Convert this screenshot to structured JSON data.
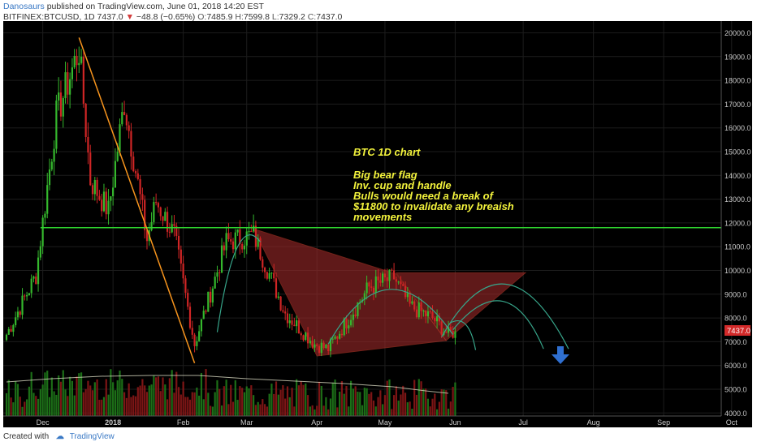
{
  "header": {
    "author": "Danosaurs",
    "published_text": "published on TradingView.com, June 01, 2018 14:20 EST",
    "symbol": "BITFINEX:BTCUSD, 1D",
    "last": "7437.0",
    "arrow": "▼",
    "change": "−48.8 (−0.65%)",
    "o_label": "O:",
    "o_value": "7485.9",
    "h_label": "H:",
    "h_value": "7599.8",
    "l_label": "L:",
    "l_value": "7329.2",
    "c_label": "C:",
    "c_value": "7437.0"
  },
  "annotation": {
    "title": "BTC 1D chart",
    "lines": [
      "Big bear flag",
      "Inv. cup and handle",
      "Bulls would need a break of",
      "$11800 to invalidate any breaish",
      "movements"
    ]
  },
  "price_tag": "7437.0",
  "footer": {
    "created_with": "Created with",
    "brand": "TradingView"
  },
  "colors": {
    "background": "#000000",
    "up": "#35b82d",
    "down": "#cf2525",
    "trendline": "#f7941d",
    "support": "#2fd52f",
    "text_yellow": "#f3f33c",
    "flag_fill": "#9e2a2a",
    "cup_curve": "#37a58a",
    "arrow": "#2f6fd0",
    "price_tag_bg": "#d32a2a"
  },
  "chart_data": {
    "type": "candlestick",
    "interval": "1D",
    "ylim": [
      3900,
      20500
    ],
    "y_ticks": [
      4000,
      5000,
      6000,
      7000,
      8000,
      9000,
      10000,
      11000,
      12000,
      13000,
      14000,
      15000,
      16000,
      17000,
      18000,
      19000,
      20000
    ],
    "x_ticks": [
      "Dec",
      "2018",
      "Feb",
      "Mar",
      "Apr",
      "May",
      "Jun",
      "Jul",
      "Aug",
      "Sep",
      "Oct"
    ],
    "grid": true,
    "price_path": [
      {
        "date": "2017-11-15",
        "close": 7300
      },
      {
        "date": "2017-11-28",
        "close": 9800
      },
      {
        "date": "2017-12-07",
        "close": 16500
      },
      {
        "date": "2017-12-17",
        "close": 19300
      },
      {
        "date": "2017-12-22",
        "close": 13800
      },
      {
        "date": "2017-12-30",
        "close": 12500
      },
      {
        "date": "2018-01-06",
        "close": 17100
      },
      {
        "date": "2018-01-16",
        "close": 11300
      },
      {
        "date": "2018-01-20",
        "close": 12900
      },
      {
        "date": "2018-01-28",
        "close": 11500
      },
      {
        "date": "2018-02-06",
        "close": 6900
      },
      {
        "date": "2018-02-20",
        "close": 11200
      },
      {
        "date": "2018-03-04",
        "close": 11500
      },
      {
        "date": "2018-03-18",
        "close": 8200
      },
      {
        "date": "2018-03-31",
        "close": 6900
      },
      {
        "date": "2018-04-06",
        "close": 6700
      },
      {
        "date": "2018-04-24",
        "close": 9300
      },
      {
        "date": "2018-05-05",
        "close": 9700
      },
      {
        "date": "2018-05-12",
        "close": 8500
      },
      {
        "date": "2018-05-22",
        "close": 8000
      },
      {
        "date": "2018-05-29",
        "close": 7300
      },
      {
        "date": "2018-06-01",
        "close": 7437
      }
    ],
    "drawings": {
      "resistance_level": 11800,
      "trendline": {
        "from": {
          "date": "2017-12-17",
          "price": 19800
        },
        "to": {
          "date": "2018-02-06",
          "price": 6100
        }
      },
      "flag_top": 9900
    }
  }
}
